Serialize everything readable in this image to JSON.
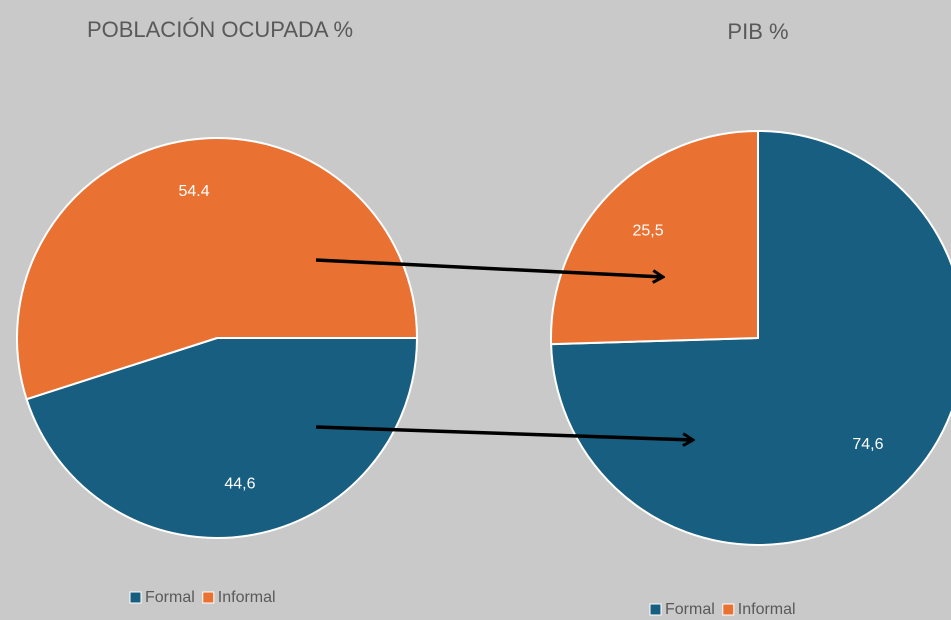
{
  "chart_data": [
    {
      "type": "pie",
      "title": "POBLACIÓN OCUPADA %",
      "categories": [
        "Formal",
        "Informal"
      ],
      "values": [
        44.6,
        54.4
      ],
      "value_labels": [
        "44,6",
        "54.4"
      ],
      "colors": [
        "#175e80",
        "#e97132"
      ],
      "legend": "bottom"
    },
    {
      "type": "pie",
      "title": "PIB %",
      "categories": [
        "Formal",
        "Informal"
      ],
      "values": [
        74.6,
        25.5
      ],
      "value_labels": [
        "74,6",
        "25,5"
      ],
      "colors": [
        "#175e80",
        "#e97132"
      ],
      "legend": "bottom"
    }
  ]
}
